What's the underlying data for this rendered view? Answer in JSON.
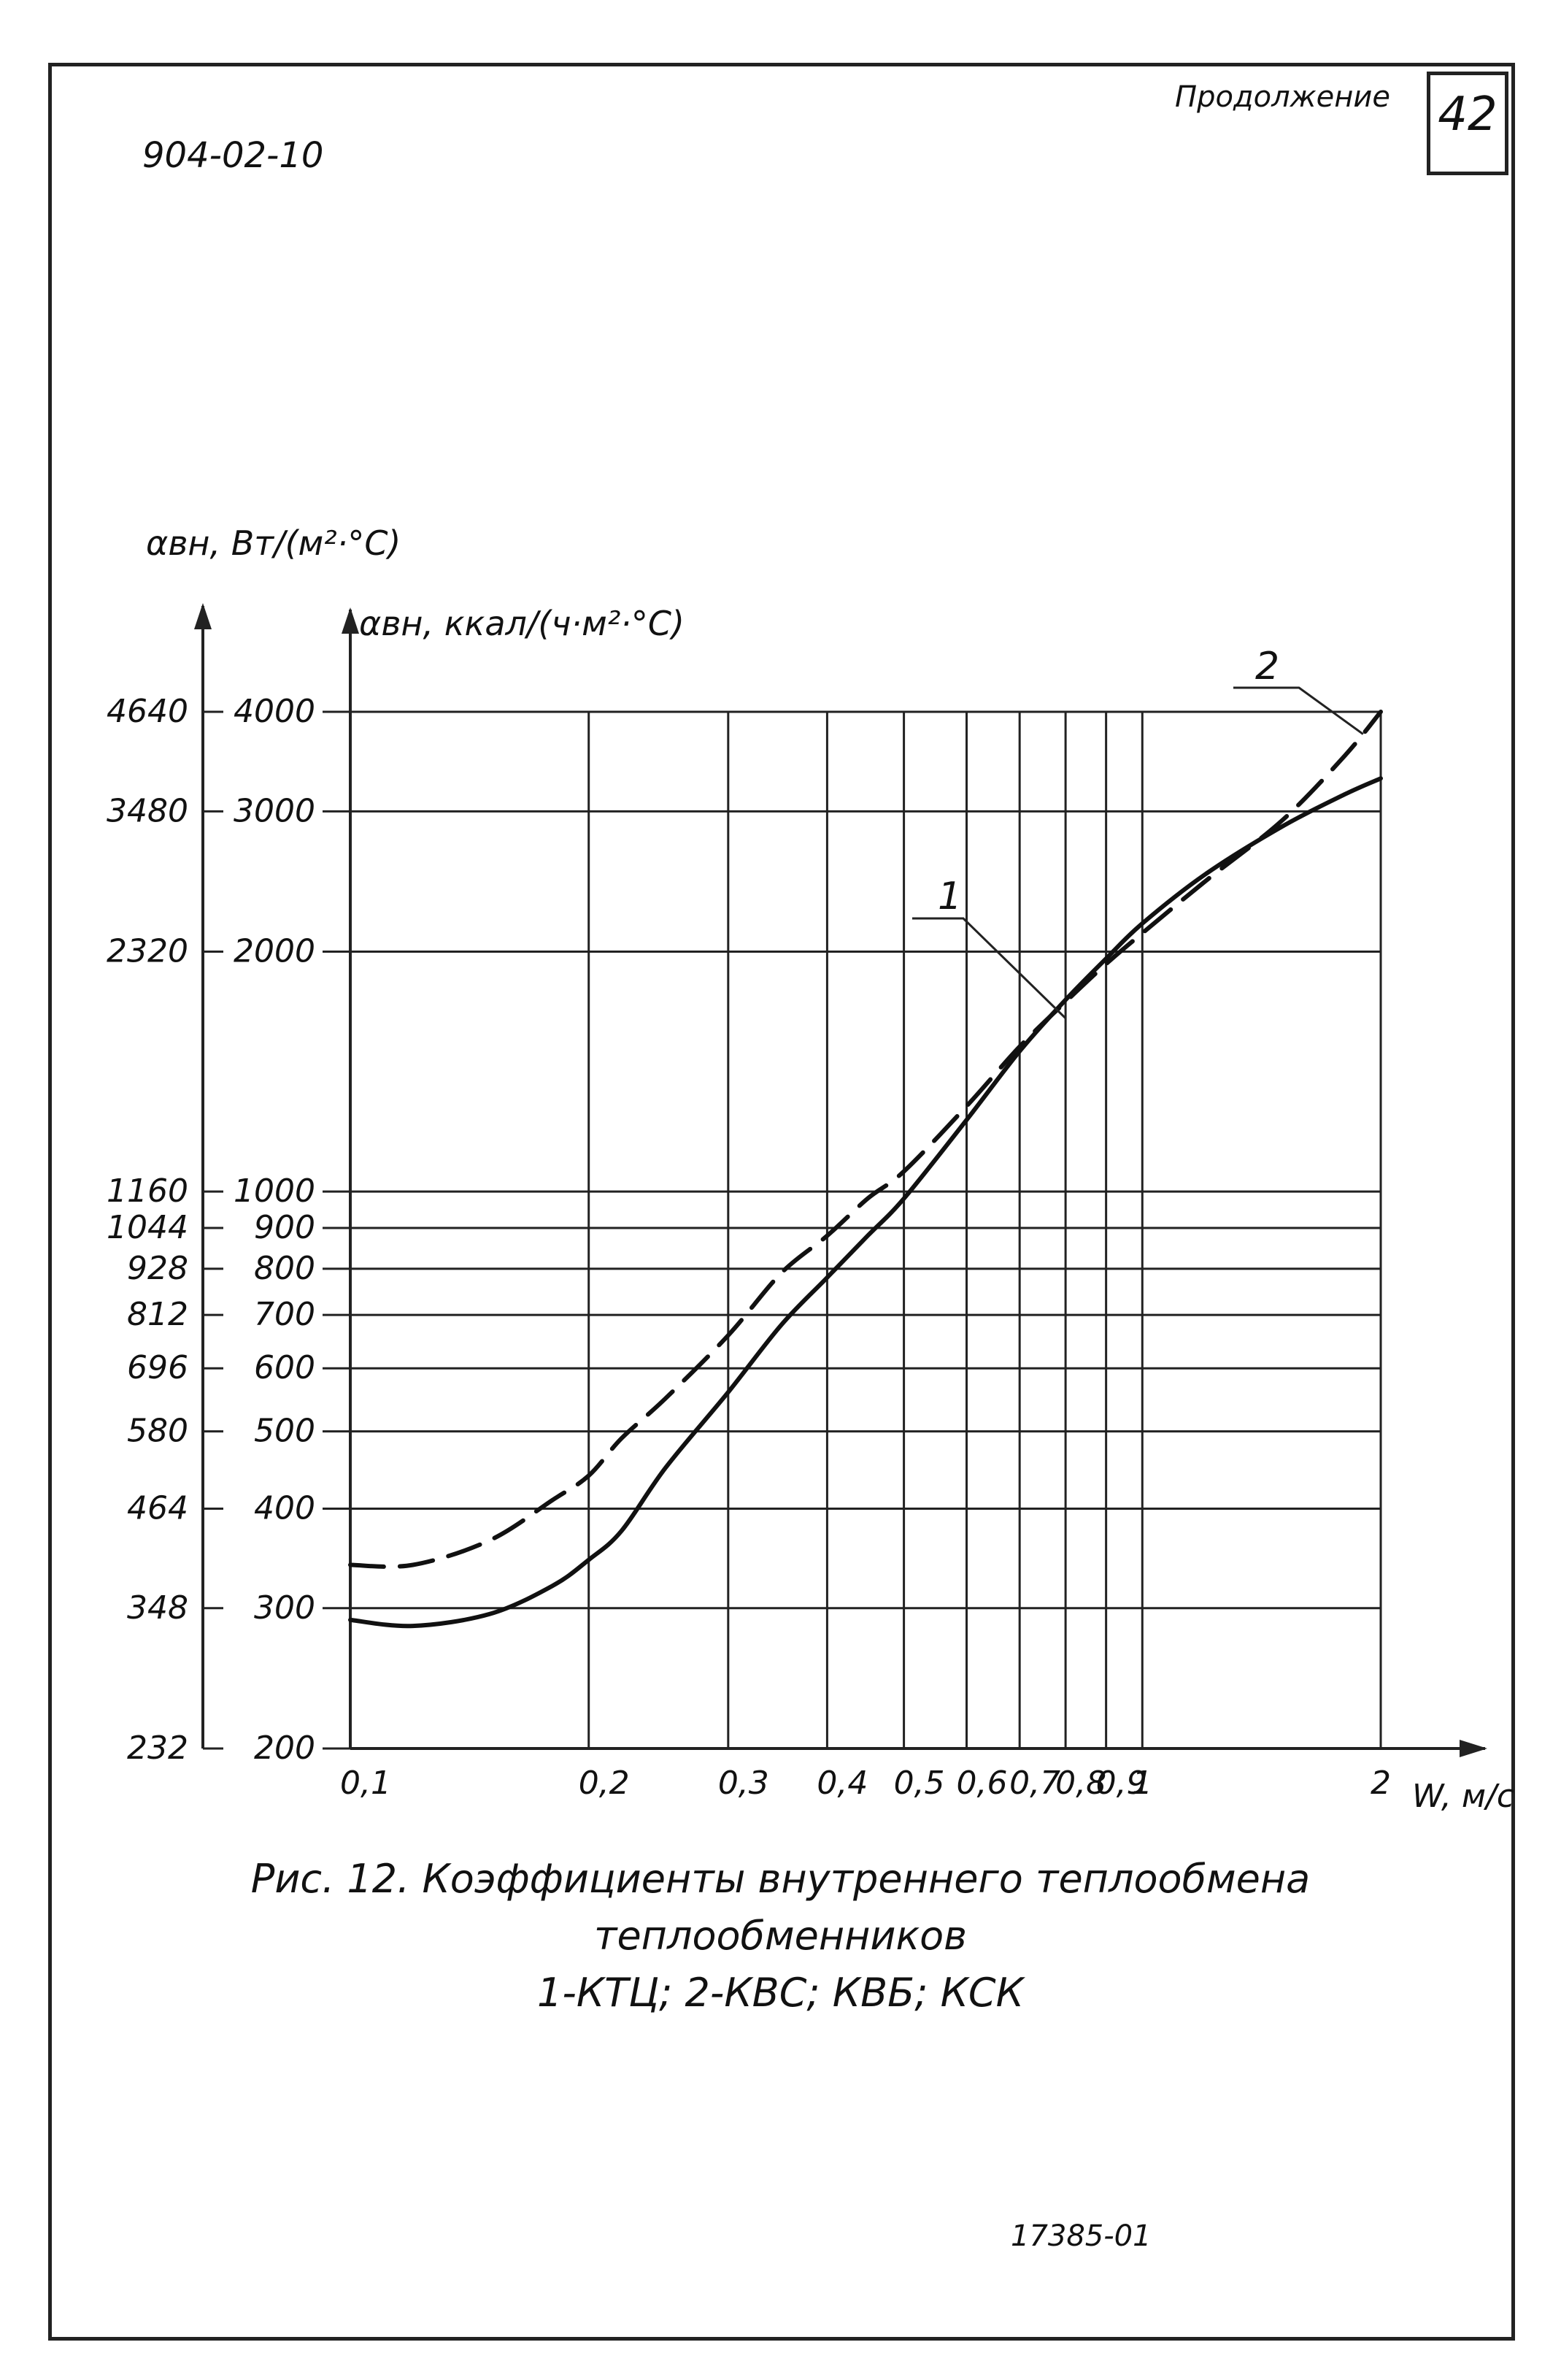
{
  "header": {
    "doc_code": "904-02-10",
    "continuation": "Продолжение",
    "page_number": "42"
  },
  "footer": {
    "archive_number": "17385-01"
  },
  "caption": {
    "lines": [
      "Рис. 12.    Коэффициенты внутреннего теплообмена",
      "теплообменников",
      "1-КТЦ;  2-КВС; КВБ; КСК"
    ]
  },
  "chart_data": {
    "type": "line",
    "x_scale": "log",
    "y_scale": "log",
    "xlim": [
      0.1,
      2
    ],
    "ylim": [
      200,
      4000
    ],
    "xlabel": "W, м/с",
    "ylabel_left": "αвн, Вт/(м²·°С)",
    "ylabel_right": "αвн, ккал/(ч·м²·°С)",
    "x_ticks": [
      {
        "value": 0.1,
        "label": "0,1"
      },
      {
        "value": 0.2,
        "label": "0,2"
      },
      {
        "value": 0.3,
        "label": "0,3"
      },
      {
        "value": 0.4,
        "label": "0,4"
      },
      {
        "value": 0.5,
        "label": "0,5"
      },
      {
        "value": 0.6,
        "label": "0,6"
      },
      {
        "value": 0.7,
        "label": "0,7"
      },
      {
        "value": 0.8,
        "label": "0,8"
      },
      {
        "value": 0.9,
        "label": "0,9"
      },
      {
        "value": 1,
        "label": "1"
      },
      {
        "value": 2,
        "label": "2"
      }
    ],
    "y_ticks": [
      {
        "value": 200,
        "kcal": "200",
        "watt": "232"
      },
      {
        "value": 300,
        "kcal": "300",
        "watt": "348"
      },
      {
        "value": 400,
        "kcal": "400",
        "watt": "464"
      },
      {
        "value": 500,
        "kcal": "500",
        "watt": "580"
      },
      {
        "value": 600,
        "kcal": "600",
        "watt": "696"
      },
      {
        "value": 700,
        "kcal": "700",
        "watt": "812"
      },
      {
        "value": 800,
        "kcal": "800",
        "watt": "928"
      },
      {
        "value": 900,
        "kcal": "900",
        "watt": "1044"
      },
      {
        "value": 1000,
        "kcal": "1000",
        "watt": "1160"
      },
      {
        "value": 2000,
        "kcal": "2000",
        "watt": "2320"
      },
      {
        "value": 3000,
        "kcal": "3000",
        "watt": "3480"
      },
      {
        "value": 4000,
        "kcal": "4000",
        "watt": "4640"
      }
    ],
    "grid": true,
    "series": [
      {
        "name": "1",
        "style": "solid",
        "color": "#111111",
        "x": [
          0.1,
          0.12,
          0.15,
          0.18,
          0.2,
          0.22,
          0.25,
          0.3,
          0.35,
          0.4,
          0.45,
          0.5,
          0.6,
          0.7,
          0.8,
          0.9,
          1.0,
          1.2,
          1.5,
          1.8,
          2.0
        ],
        "y": [
          290,
          285,
          295,
          320,
          345,
          375,
          450,
          560,
          680,
          780,
          880,
          980,
          1230,
          1500,
          1740,
          1960,
          2170,
          2500,
          2870,
          3150,
          3300
        ]
      },
      {
        "name": "2",
        "style": "dashed",
        "color": "#111111",
        "x": [
          0.1,
          0.12,
          0.15,
          0.18,
          0.2,
          0.22,
          0.25,
          0.3,
          0.35,
          0.4,
          0.45,
          0.5,
          0.6,
          0.7,
          0.8,
          0.9,
          1.0,
          1.2,
          1.5,
          1.8,
          2.0
        ],
        "y": [
          340,
          340,
          365,
          410,
          440,
          490,
          550,
          660,
          790,
          880,
          980,
          1060,
          1280,
          1520,
          1730,
          1930,
          2110,
          2450,
          2920,
          3520,
          4000
        ]
      }
    ],
    "annotations": [
      {
        "text": "1",
        "series": "1"
      },
      {
        "text": "2",
        "series": "2"
      }
    ]
  }
}
